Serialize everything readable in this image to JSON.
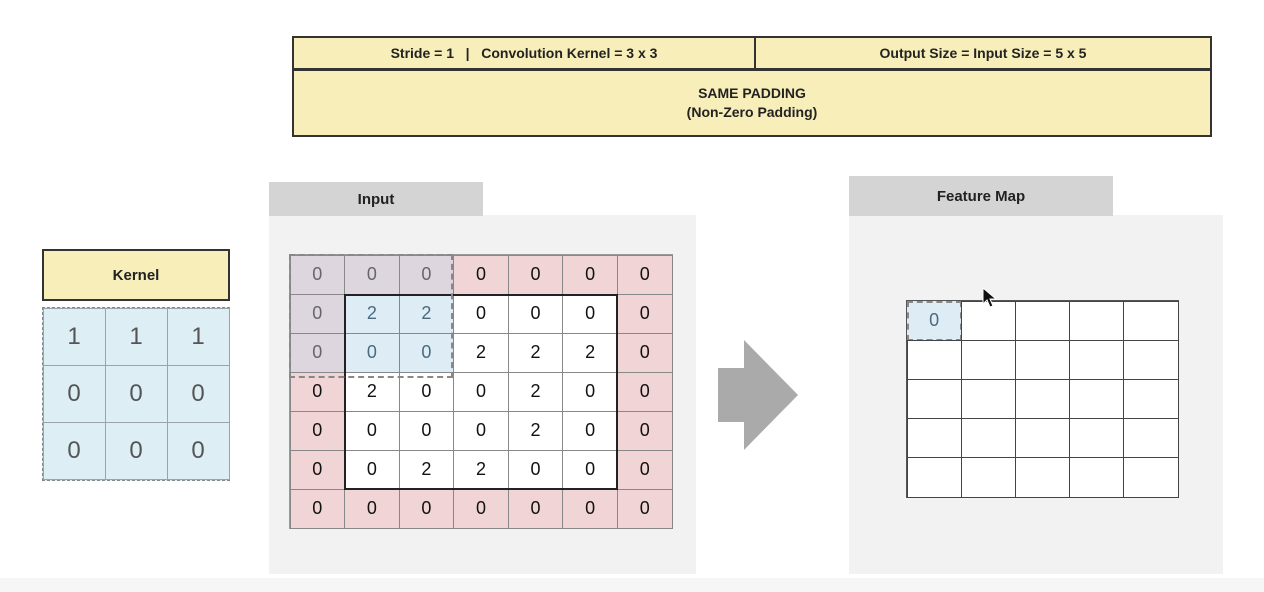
{
  "header": {
    "stride_kernel": "Stride = 1   |   Convolution Kernel = 3 x 3",
    "output_size": "Output Size = Input Size = 5 x 5",
    "padding_title": "SAME PADDING",
    "padding_subtitle": "(Non-Zero Padding)"
  },
  "kernel": {
    "title": "Kernel",
    "cells": [
      [
        "1",
        "1",
        "1"
      ],
      [
        "0",
        "0",
        "0"
      ],
      [
        "0",
        "0",
        "0"
      ]
    ]
  },
  "input": {
    "title": "Input",
    "cells": [
      [
        "0",
        "0",
        "0",
        "0",
        "0",
        "0",
        "0"
      ],
      [
        "0",
        "2",
        "2",
        "0",
        "0",
        "0",
        "0"
      ],
      [
        "0",
        "0",
        "0",
        "2",
        "2",
        "2",
        "0"
      ],
      [
        "0",
        "2",
        "0",
        "0",
        "2",
        "0",
        "0"
      ],
      [
        "0",
        "0",
        "0",
        "0",
        "2",
        "0",
        "0"
      ],
      [
        "0",
        "0",
        "2",
        "2",
        "0",
        "0",
        "0"
      ],
      [
        "0",
        "0",
        "0",
        "0",
        "0",
        "0",
        "0"
      ]
    ]
  },
  "feature_map": {
    "title": "Feature Map",
    "cells": [
      [
        "0",
        "",
        "",
        "",
        ""
      ],
      [
        "",
        "",
        "",
        "",
        ""
      ],
      [
        "",
        "",
        "",
        "",
        ""
      ],
      [
        "",
        "",
        "",
        "",
        ""
      ],
      [
        "",
        "",
        "",
        "",
        ""
      ]
    ]
  },
  "colors": {
    "header_bg": "#f8eeb9",
    "kernel_bg": "#ddeef5",
    "padding_bg": "#f1d4d6",
    "panel_bg": "#f2f2f2",
    "tab_bg": "#d4d4d4",
    "arrow": "#aaaaaa"
  }
}
